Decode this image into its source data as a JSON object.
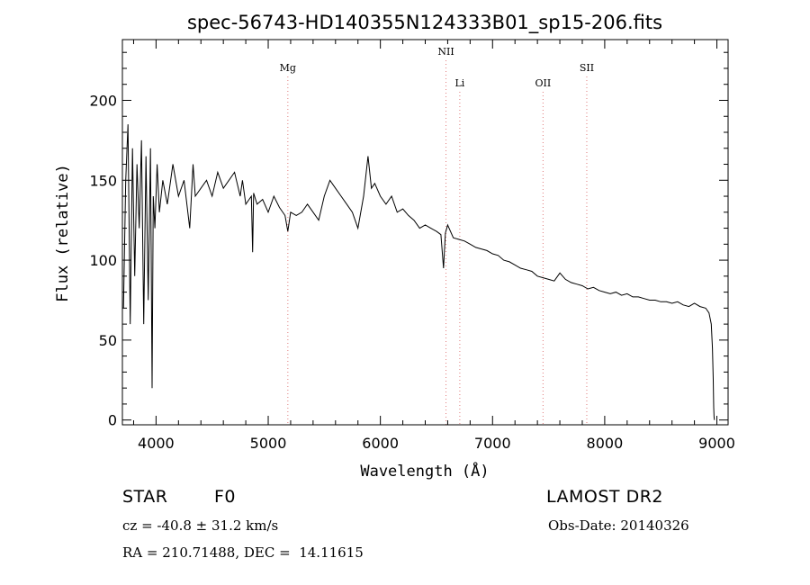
{
  "chart_data": {
    "type": "line",
    "title": "spec-56743-HD140355N124333B01_sp15-206.fits",
    "xlabel": "Wavelength (Å)",
    "ylabel": "Flux (relative)",
    "xlim": [
      3700,
      9100
    ],
    "ylim": [
      -3,
      238
    ],
    "xticks": [
      "4000",
      "5000",
      "6000",
      "7000",
      "8000",
      "9000"
    ],
    "xtick_values": [
      4000,
      5000,
      6000,
      7000,
      8000,
      9000
    ],
    "yticks": [
      "0",
      "50",
      "100",
      "150",
      "200"
    ],
    "ytick_values": [
      0,
      50,
      100,
      150,
      200
    ],
    "grid": false,
    "line_color": "#000000",
    "marker_color": "#e07a7a",
    "spectral_lines": [
      {
        "name": "Mg",
        "x": 5175
      },
      {
        "name": "NII",
        "x": 6585
      },
      {
        "name": "Li",
        "x": 6708
      },
      {
        "name": "OII",
        "x": 7450
      },
      {
        "name": "SII",
        "x": 7840
      }
    ],
    "series": [
      {
        "x": [
          3710,
          3730,
          3750,
          3770,
          3790,
          3810,
          3830,
          3850,
          3870,
          3890,
          3910,
          3930,
          3950,
          3965,
          3975,
          3990,
          4010,
          4030,
          4060,
          4100,
          4150,
          4200,
          4250,
          4300,
          4330,
          4350,
          4400,
          4450,
          4500,
          4550,
          4600,
          4650,
          4700,
          4750,
          4770,
          4800,
          4850,
          4861,
          4870,
          4900,
          4950,
          5000,
          5050,
          5100,
          5150,
          5175,
          5200,
          5250,
          5300,
          5350,
          5400,
          5450,
          5500,
          5550,
          5600,
          5650,
          5700,
          5750,
          5800,
          5850,
          5890,
          5920,
          5950,
          6000,
          6050,
          6100,
          6150,
          6200,
          6250,
          6300,
          6350,
          6400,
          6450,
          6500,
          6540,
          6563,
          6580,
          6600,
          6650,
          6700,
          6750,
          6800,
          6850,
          6900,
          6950,
          7000,
          7050,
          7100,
          7150,
          7200,
          7250,
          7300,
          7350,
          7400,
          7450,
          7500,
          7550,
          7600,
          7650,
          7700,
          7750,
          7800,
          7850,
          7900,
          7950,
          8000,
          8050,
          8100,
          8150,
          8200,
          8250,
          8300,
          8350,
          8400,
          8450,
          8500,
          8550,
          8600,
          8650,
          8700,
          8750,
          8800,
          8850,
          8900,
          8930,
          8950,
          8960,
          8968,
          8972,
          8975,
          8978
        ],
        "values": [
          70,
          150,
          185,
          60,
          170,
          90,
          160,
          120,
          175,
          60,
          165,
          75,
          170,
          20,
          140,
          120,
          160,
          130,
          150,
          135,
          160,
          140,
          150,
          120,
          160,
          140,
          145,
          150,
          140,
          155,
          145,
          150,
          155,
          140,
          150,
          135,
          140,
          105,
          142,
          135,
          138,
          130,
          140,
          133,
          128,
          118,
          130,
          128,
          130,
          135,
          130,
          125,
          140,
          150,
          145,
          140,
          135,
          130,
          120,
          140,
          165,
          145,
          148,
          140,
          135,
          140,
          130,
          132,
          128,
          125,
          120,
          122,
          120,
          118,
          116,
          95,
          117,
          122,
          114,
          113,
          112,
          110,
          108,
          107,
          106,
          104,
          103,
          100,
          99,
          97,
          95,
          94,
          93,
          90,
          89,
          88,
          87,
          92,
          88,
          86,
          85,
          84,
          82,
          83,
          81,
          80,
          79,
          80,
          78,
          79,
          77,
          77,
          76,
          75,
          75,
          74,
          74,
          73,
          74,
          72,
          71,
          73,
          71,
          70,
          67,
          60,
          45,
          25,
          8,
          2,
          0
        ]
      }
    ]
  },
  "info": {
    "object_class": "STAR",
    "subclass": "F0",
    "survey": "LAMOST DR2",
    "cz": "cz = -40.8 ± 31.2 km/s",
    "obs_date": "Obs-Date: 20140326",
    "coords": "RA = 210.71488, DEC =  14.11615"
  }
}
